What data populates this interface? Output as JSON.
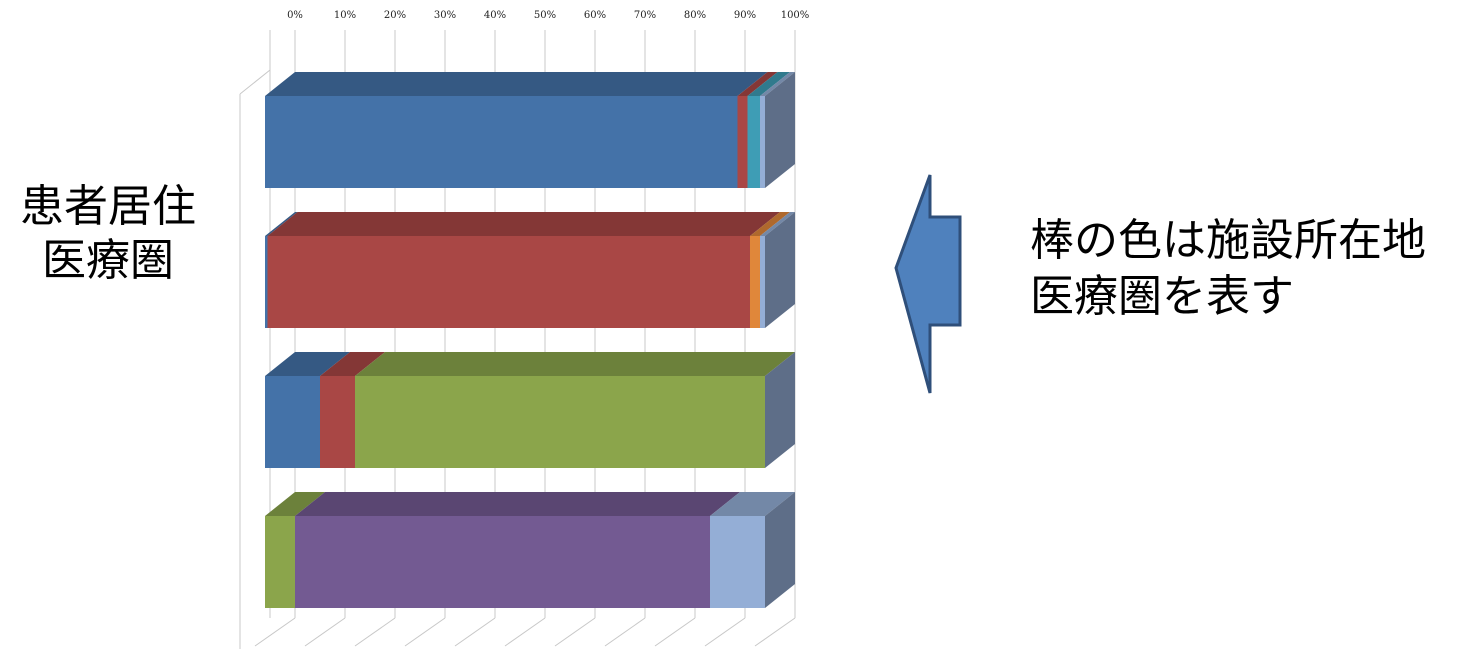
{
  "chart_data": {
    "type": "bar",
    "orientation": "horizontal",
    "stacked": "100%",
    "three_d": true,
    "x_ticks": [
      "0%",
      "10%",
      "20%",
      "30%",
      "40%",
      "50%",
      "60%",
      "70%",
      "80%",
      "90%",
      "100%"
    ],
    "xlim": [
      0,
      100
    ],
    "grid": true,
    "categories": [
      "",
      "",
      "",
      ""
    ],
    "series": [
      {
        "color": "#4472A8",
        "values": [
          94.5,
          0.5,
          11,
          0
        ]
      },
      {
        "color": "#A94745",
        "values": [
          2,
          96.5,
          7,
          0
        ]
      },
      {
        "color": "#8BA54B",
        "values": [
          0,
          0,
          82,
          6
        ]
      },
      {
        "color": "#735A92",
        "values": [
          0,
          0,
          0,
          83
        ]
      },
      {
        "color": "#3E9DB5",
        "values": [
          2.5,
          0,
          0,
          0
        ]
      },
      {
        "color": "#E0873A",
        "values": [
          0,
          2,
          0,
          0
        ]
      },
      {
        "color": "#94AED6",
        "values": [
          1,
          1,
          0,
          11
        ]
      }
    ]
  },
  "left_label": "患者居住\n医療圏",
  "right_label": "棒の色は施設所在地\n医療圏を表す",
  "arrow_color": "#4F81BD"
}
